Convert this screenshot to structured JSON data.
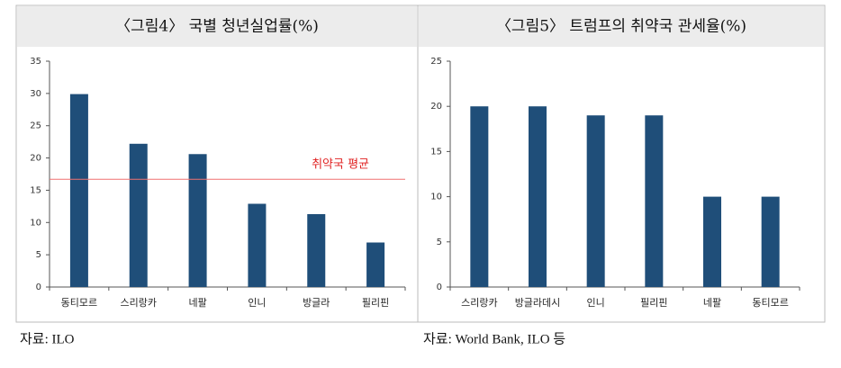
{
  "chart_data": [
    {
      "type": "bar",
      "title": "〈그림4〉 국별 청년실업률(%)",
      "categories": [
        "동티모르",
        "스리랑카",
        "네팔",
        "인니",
        "방글라",
        "필리핀"
      ],
      "values": [
        29.9,
        22.2,
        20.6,
        12.9,
        11.3,
        6.9
      ],
      "color": "#1f4e79",
      "ylim": [
        0,
        35
      ],
      "yticks": [
        0,
        5,
        10,
        15,
        20,
        25,
        30,
        35
      ],
      "reference_line": {
        "value": 16.7,
        "label": "취약국 평균",
        "color": "#f07070"
      },
      "source": "자료: ILO"
    },
    {
      "type": "bar",
      "title": "〈그림5〉 트럼프의 취약국 관세율(%)",
      "categories": [
        "스리랑카",
        "방글라데시",
        "인니",
        "필리핀",
        "네팔",
        "동티모르"
      ],
      "values": [
        20,
        20,
        19,
        19,
        10,
        10
      ],
      "color": "#1f4e79",
      "ylim": [
        0,
        25
      ],
      "yticks": [
        0,
        5,
        10,
        15,
        20,
        25
      ],
      "source": "자료: World Bank, ILO 등"
    }
  ]
}
